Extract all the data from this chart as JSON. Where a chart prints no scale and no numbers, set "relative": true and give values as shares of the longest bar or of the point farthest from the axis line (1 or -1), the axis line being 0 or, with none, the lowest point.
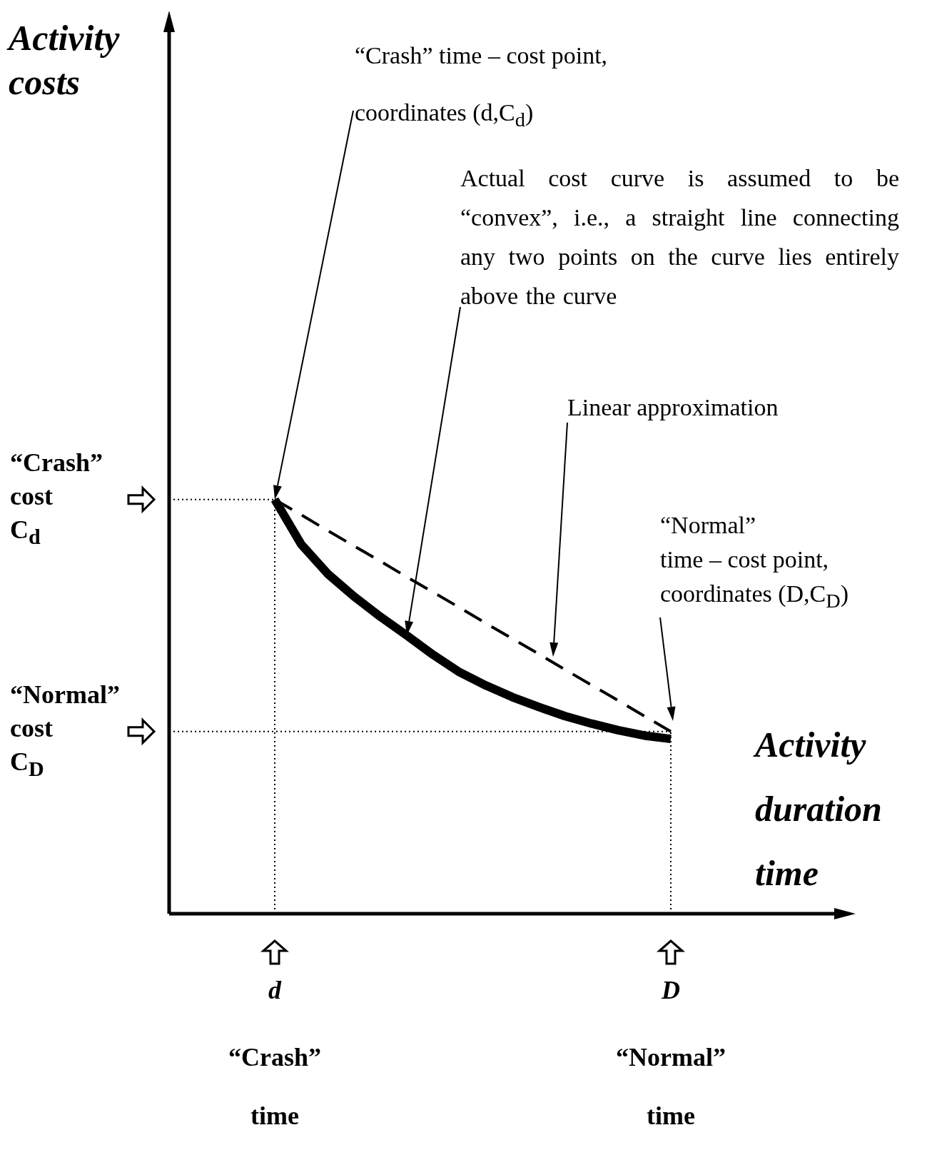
{
  "chart_data": {
    "type": "line",
    "relative": true,
    "xlabel": "Activity\nduration\ntime",
    "legend": false,
    "marker": "none",
    "categories": [
      null,
      null,
      null,
      null,
      "d",
      null,
      null,
      null,
      null,
      null,
      null,
      null,
      null,
      null,
      null,
      null,
      null,
      null,
      null,
      "D",
      null,
      null,
      null,
      null,
      null,
      null,
      null
    ],
    "series": [
      {
        "color": "#000000",
        "line_style": "solid",
        "values": [
          null,
          null,
          null,
          null,
          1.0,
          0.892,
          0.821,
          0.766,
          0.717,
          0.672,
          0.625,
          0.583,
          0.551,
          0.523,
          0.499,
          0.477,
          0.459,
          0.443,
          0.43,
          0.422,
          null,
          null,
          null,
          null,
          null,
          null,
          null
        ]
      },
      {
        "color": "#000000",
        "line_style": "dashed",
        "values": [
          null,
          null,
          null,
          null,
          1.0,
          0.963,
          0.925,
          0.888,
          0.851,
          0.813,
          0.776,
          0.739,
          0.701,
          0.664,
          0.627,
          0.589,
          0.552,
          0.515,
          0.477,
          0.44,
          null,
          null,
          null,
          null,
          null,
          null,
          null
        ]
      }
    ],
    "ref_lines": [
      {
        "axis": "y",
        "value": 1.0,
        "label": "“Crash”\ncost\nC$_{d}$",
        "line_style": "dotted"
      },
      {
        "axis": "y",
        "value": 0.44,
        "label": "“Normal”\ncost\nC$_{D}$",
        "line_style": "dotted"
      },
      {
        "axis": "x",
        "value": "d",
        "line_style": "dotted"
      },
      {
        "axis": "x",
        "value": "D",
        "line_style": "dotted"
      }
    ],
    "annotations": [
      "Activity\ncosts",
      "“Crash”  time – cost point,\ncoordinates  (d,C$_{d}$)",
      "Actual cost curve is assumed to be “convex”, i.e., a straight line connecting any two points on the curve lies entirely above the curve",
      "Linear approximation",
      "“Normal”\ntime – cost  point,\ncoordinates  (D,C$_{D}$)",
      "“Crash”\ntime",
      "“Normal”\ntime"
    ]
  }
}
